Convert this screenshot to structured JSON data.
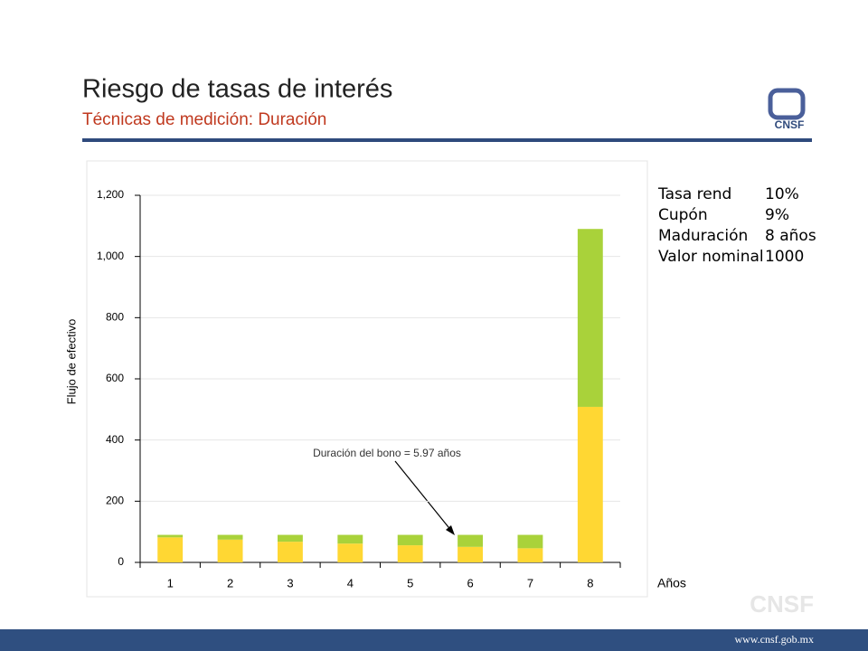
{
  "header": {
    "title": "Riesgo de tasas de interés",
    "subtitle": "Técnicas de medición: Duración",
    "logo": "CNSF"
  },
  "chart_data": {
    "type": "bar",
    "stacked": true,
    "categories": [
      "1",
      "2",
      "3",
      "4",
      "5",
      "6",
      "7",
      "8"
    ],
    "series": [
      {
        "color": "#ffd733",
        "values": [
          81.8,
          74.4,
          67.6,
          61.5,
          55.9,
          50.8,
          46.2,
          508.5
        ]
      },
      {
        "color": "#a9d23a",
        "values": [
          8.2,
          15.6,
          22.4,
          28.5,
          34.1,
          39.2,
          43.8,
          581.5
        ]
      }
    ],
    "ylim": [
      0,
      1200
    ],
    "yticks": [
      0,
      200,
      400,
      600,
      800,
      {
        "value": 1000,
        "label": "1,000"
      },
      {
        "value": 1200,
        "label": "1,200"
      }
    ],
    "grid": true,
    "y_label": "Flujo de efectivo",
    "x_label": "Años",
    "annotation": "Duración del bono = 5.97 años"
  },
  "info": [
    [
      "Tasa rend",
      "10%"
    ],
    [
      "Cupón",
      "9%"
    ],
    [
      "Maduración",
      "8 años"
    ],
    [
      "Valor nominal",
      "1000"
    ]
  ],
  "watermark": "CNSF",
  "footer": "www.cnsf.gob.mx"
}
